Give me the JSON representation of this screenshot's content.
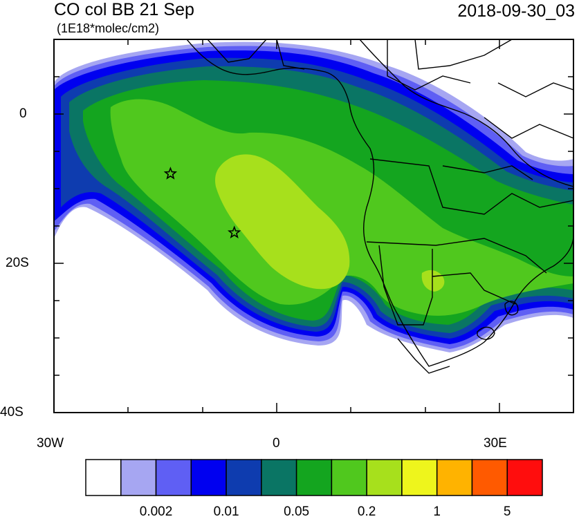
{
  "map": {
    "title": "CO col BB 21 Sep",
    "units": "(1E18*molec/cm2)",
    "timestamp": "2018-09-30_03",
    "lat_labels": [
      "0",
      "20S",
      "40S"
    ],
    "lon_labels": [
      "30W",
      "0",
      "30E"
    ],
    "lon_range": [
      -30,
      40
    ],
    "lat_range": [
      -40,
      10
    ],
    "markers": [
      {
        "name": "star",
        "lon": -14.3,
        "lat": -8.0
      },
      {
        "name": "star",
        "lon": -5.7,
        "lat": -15.9
      }
    ],
    "colorbar": {
      "colors": [
        "#ffffff",
        "#a6a6f2",
        "#5f5ff4",
        "#0000f0",
        "#0e3caf",
        "#0a7564",
        "#14a51f",
        "#50c81e",
        "#a7e01c",
        "#eef51c",
        "#ffb300",
        "#ff5a00",
        "#ff0d0d"
      ],
      "labels": [
        "0.002",
        "0.01",
        "0.05",
        "0.2",
        "1",
        "5"
      ]
    }
  }
}
